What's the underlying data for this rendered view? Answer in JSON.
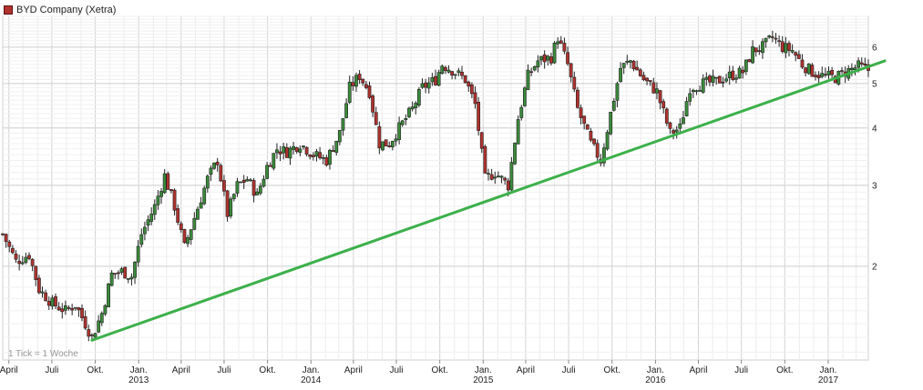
{
  "chart_data": {
    "type": "candlestick",
    "title": "BYD Company (Xetra)",
    "legend": {
      "label": "BYD Company (Xetra)",
      "color": "#b0322e",
      "placement": "top-left"
    },
    "note": "1 Tick = 1 Woche",
    "y_scale": "log",
    "ylim": [
      1.25,
      7.0
    ],
    "y_ticks": [
      2,
      3,
      4,
      5,
      6
    ],
    "x_range": [
      "2012-03-19",
      "2017-03-27"
    ],
    "x_ticks": [
      {
        "date": "2012-04-01",
        "label": "April",
        "year": ""
      },
      {
        "date": "2012-07-01",
        "label": "Juli",
        "year": ""
      },
      {
        "date": "2012-10-01",
        "label": "Okt.",
        "year": ""
      },
      {
        "date": "2013-01-01",
        "label": "Jan.",
        "year": "2013"
      },
      {
        "date": "2013-04-01",
        "label": "April",
        "year": ""
      },
      {
        "date": "2013-07-01",
        "label": "Juli",
        "year": ""
      },
      {
        "date": "2013-10-01",
        "label": "Okt.",
        "year": ""
      },
      {
        "date": "2014-01-01",
        "label": "Jan.",
        "year": "2014"
      },
      {
        "date": "2014-04-01",
        "label": "April",
        "year": ""
      },
      {
        "date": "2014-07-01",
        "label": "Juli",
        "year": ""
      },
      {
        "date": "2014-10-01",
        "label": "Okt.",
        "year": ""
      },
      {
        "date": "2015-01-01",
        "label": "Jan.",
        "year": "2015"
      },
      {
        "date": "2015-04-01",
        "label": "April",
        "year": ""
      },
      {
        "date": "2015-07-01",
        "label": "Juli",
        "year": ""
      },
      {
        "date": "2015-10-01",
        "label": "Okt.",
        "year": ""
      },
      {
        "date": "2016-01-01",
        "label": "Jan.",
        "year": "2016"
      },
      {
        "date": "2016-04-01",
        "label": "April",
        "year": ""
      },
      {
        "date": "2016-07-01",
        "label": "Juli",
        "year": ""
      },
      {
        "date": "2016-10-01",
        "label": "Okt.",
        "year": ""
      },
      {
        "date": "2017-01-01",
        "label": "Jan.",
        "year": "2017"
      }
    ],
    "grid": true,
    "trendline": {
      "from": {
        "date": "2012-09-24",
        "value": 1.38
      },
      "to": {
        "date": "2017-05-01",
        "value": 5.6
      },
      "color": "#3cb04a"
    },
    "up_color": "#3a8a3a",
    "down_color": "#b0322e",
    "close_path": [
      [
        "2012-03-19",
        2.35
      ],
      [
        "2012-04-16",
        2.05
      ],
      [
        "2012-05-14",
        2.12
      ],
      [
        "2012-06-04",
        1.78
      ],
      [
        "2012-07-02",
        1.66
      ],
      [
        "2012-07-30",
        1.6
      ],
      [
        "2012-08-20",
        1.65
      ],
      [
        "2012-09-10",
        1.5
      ],
      [
        "2012-09-24",
        1.4
      ],
      [
        "2012-10-15",
        1.58
      ],
      [
        "2012-11-05",
        1.92
      ],
      [
        "2012-11-26",
        1.95
      ],
      [
        "2012-12-17",
        1.9
      ],
      [
        "2013-01-07",
        2.35
      ],
      [
        "2013-02-04",
        2.7
      ],
      [
        "2013-02-25",
        3.15
      ],
      [
        "2013-03-18",
        2.7
      ],
      [
        "2013-04-08",
        2.2
      ],
      [
        "2013-04-29",
        2.55
      ],
      [
        "2013-05-27",
        3.1
      ],
      [
        "2013-06-17",
        3.4
      ],
      [
        "2013-07-08",
        2.6
      ],
      [
        "2013-07-29",
        3.0
      ],
      [
        "2013-08-19",
        3.1
      ],
      [
        "2013-09-09",
        2.85
      ],
      [
        "2013-09-30",
        3.3
      ],
      [
        "2013-10-21",
        3.6
      ],
      [
        "2013-11-11",
        3.55
      ],
      [
        "2013-12-09",
        3.7
      ],
      [
        "2014-01-06",
        3.5
      ],
      [
        "2014-02-03",
        3.4
      ],
      [
        "2014-03-03",
        3.9
      ],
      [
        "2014-03-24",
        4.9
      ],
      [
        "2014-04-14",
        5.2
      ],
      [
        "2014-05-05",
        4.8
      ],
      [
        "2014-05-26",
        3.7
      ],
      [
        "2014-06-16",
        3.7
      ],
      [
        "2014-07-07",
        4.0
      ],
      [
        "2014-08-04",
        4.4
      ],
      [
        "2014-08-25",
        4.9
      ],
      [
        "2014-09-22",
        5.1
      ],
      [
        "2014-10-06",
        5.5
      ],
      [
        "2014-10-27",
        5.35
      ],
      [
        "2014-11-24",
        5.1
      ],
      [
        "2014-12-15",
        4.5
      ],
      [
        "2015-01-05",
        3.1
      ],
      [
        "2015-01-26",
        3.2
      ],
      [
        "2015-02-23",
        3.0
      ],
      [
        "2015-03-16",
        4.2
      ],
      [
        "2015-04-06",
        5.2
      ],
      [
        "2015-04-27",
        5.6
      ],
      [
        "2015-05-25",
        5.7
      ],
      [
        "2015-06-08",
        6.3
      ],
      [
        "2015-06-29",
        5.5
      ],
      [
        "2015-07-20",
        4.4
      ],
      [
        "2015-08-17",
        3.7
      ],
      [
        "2015-09-07",
        3.4
      ],
      [
        "2015-09-28",
        4.3
      ],
      [
        "2015-10-19",
        5.4
      ],
      [
        "2015-11-09",
        5.6
      ],
      [
        "2015-12-07",
        5.1
      ],
      [
        "2016-01-04",
        4.8
      ],
      [
        "2016-02-01",
        3.9
      ],
      [
        "2016-02-22",
        4.0
      ],
      [
        "2016-03-14",
        4.9
      ],
      [
        "2016-04-11",
        5.0
      ],
      [
        "2016-05-09",
        5.05
      ],
      [
        "2016-06-06",
        5.2
      ],
      [
        "2016-07-04",
        5.3
      ],
      [
        "2016-07-25",
        5.9
      ],
      [
        "2016-08-15",
        6.0
      ],
      [
        "2016-09-05",
        6.3
      ],
      [
        "2016-09-26",
        6.0
      ],
      [
        "2016-10-17",
        5.9
      ],
      [
        "2016-11-07",
        5.5
      ],
      [
        "2016-11-28",
        5.3
      ],
      [
        "2016-12-19",
        5.2
      ],
      [
        "2017-01-16",
        5.15
      ],
      [
        "2017-02-06",
        5.3
      ],
      [
        "2017-03-06",
        5.45
      ],
      [
        "2017-03-27",
        5.35
      ]
    ]
  }
}
